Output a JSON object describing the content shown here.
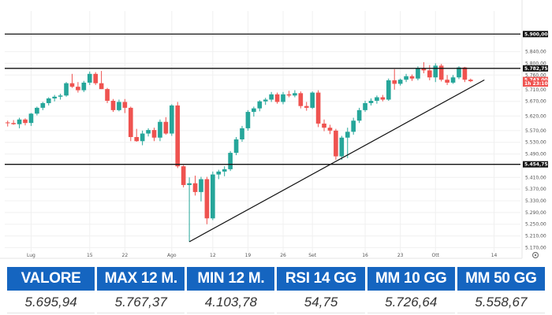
{
  "chart_data": {
    "type": "candlestick",
    "ylim": [
      5155,
      5925
    ],
    "y_ticks": [
      {
        "value": 5900,
        "label": "5.900,00"
      },
      {
        "value": 5840,
        "label": "5.840,00"
      },
      {
        "value": 5800,
        "label": "5.800,00"
      },
      {
        "value": 5760,
        "label": "5.760,00"
      },
      {
        "value": 5710,
        "label": "5.710,00"
      },
      {
        "value": 5670,
        "label": "5.670,00"
      },
      {
        "value": 5620,
        "label": "5.620,00"
      },
      {
        "value": 5570,
        "label": "5.570,00"
      },
      {
        "value": 5530,
        "label": "5.530,00"
      },
      {
        "value": 5490,
        "label": "5.490,00"
      },
      {
        "value": 5410,
        "label": "5.410,00"
      },
      {
        "value": 5370,
        "label": "5.370,00"
      },
      {
        "value": 5330,
        "label": "5.330,00"
      },
      {
        "value": 5290,
        "label": "5.290,00"
      },
      {
        "value": 5250,
        "label": "5.250,00"
      },
      {
        "value": 5210,
        "label": "5.210,00"
      },
      {
        "value": 5170,
        "label": "5.170,00"
      }
    ],
    "x_ticks": [
      {
        "index": 4,
        "label": "Lug"
      },
      {
        "index": 14,
        "label": "15"
      },
      {
        "index": 20,
        "label": "22"
      },
      {
        "index": 28,
        "label": "Ago"
      },
      {
        "index": 35,
        "label": "12"
      },
      {
        "index": 41,
        "label": "19"
      },
      {
        "index": 47,
        "label": "26"
      },
      {
        "index": 52,
        "label": "Set"
      },
      {
        "index": 61,
        "label": "16"
      },
      {
        "index": 67,
        "label": "23"
      },
      {
        "index": 73,
        "label": "Ott"
      },
      {
        "index": 83,
        "label": "14"
      }
    ],
    "x_count": 88,
    "candles": [
      {
        "o": 5598,
        "h": 5604,
        "l": 5584,
        "c": 5596
      },
      {
        "o": 5596,
        "h": 5606,
        "l": 5590,
        "c": 5592
      },
      {
        "o": 5592,
        "h": 5614,
        "l": 5578,
        "c": 5608
      },
      {
        "o": 5608,
        "h": 5612,
        "l": 5588,
        "c": 5596
      },
      {
        "o": 5596,
        "h": 5630,
        "l": 5586,
        "c": 5628
      },
      {
        "o": 5628,
        "h": 5652,
        "l": 5622,
        "c": 5648
      },
      {
        "o": 5648,
        "h": 5668,
        "l": 5640,
        "c": 5664
      },
      {
        "o": 5664,
        "h": 5684,
        "l": 5656,
        "c": 5680
      },
      {
        "o": 5680,
        "h": 5692,
        "l": 5670,
        "c": 5686
      },
      {
        "o": 5686,
        "h": 5696,
        "l": 5676,
        "c": 5690
      },
      {
        "o": 5690,
        "h": 5736,
        "l": 5686,
        "c": 5732
      },
      {
        "o": 5732,
        "h": 5764,
        "l": 5716,
        "c": 5720
      },
      {
        "o": 5720,
        "h": 5736,
        "l": 5700,
        "c": 5708
      },
      {
        "o": 5708,
        "h": 5740,
        "l": 5702,
        "c": 5734
      },
      {
        "o": 5734,
        "h": 5772,
        "l": 5726,
        "c": 5764
      },
      {
        "o": 5764,
        "h": 5770,
        "l": 5726,
        "c": 5732
      },
      {
        "o": 5732,
        "h": 5774,
        "l": 5712,
        "c": 5712
      },
      {
        "o": 5712,
        "h": 5716,
        "l": 5664,
        "c": 5672
      },
      {
        "o": 5672,
        "h": 5678,
        "l": 5634,
        "c": 5640
      },
      {
        "o": 5640,
        "h": 5676,
        "l": 5636,
        "c": 5668
      },
      {
        "o": 5668,
        "h": 5678,
        "l": 5630,
        "c": 5648
      },
      {
        "o": 5648,
        "h": 5652,
        "l": 5534,
        "c": 5548
      },
      {
        "o": 5548,
        "h": 5576,
        "l": 5532,
        "c": 5534
      },
      {
        "o": 5534,
        "h": 5570,
        "l": 5520,
        "c": 5560
      },
      {
        "o": 5560,
        "h": 5578,
        "l": 5550,
        "c": 5572
      },
      {
        "o": 5572,
        "h": 5580,
        "l": 5534,
        "c": 5546
      },
      {
        "o": 5546,
        "h": 5608,
        "l": 5534,
        "c": 5600
      },
      {
        "o": 5600,
        "h": 5616,
        "l": 5556,
        "c": 5560
      },
      {
        "o": 5560,
        "h": 5660,
        "l": 5552,
        "c": 5656
      },
      {
        "o": 5656,
        "h": 5668,
        "l": 5442,
        "c": 5448
      },
      {
        "o": 5448,
        "h": 5452,
        "l": 5376,
        "c": 5384
      },
      {
        "o": 5384,
        "h": 5410,
        "l": 5190,
        "c": 5390
      },
      {
        "o": 5390,
        "h": 5416,
        "l": 5348,
        "c": 5360
      },
      {
        "o": 5360,
        "h": 5412,
        "l": 5328,
        "c": 5404
      },
      {
        "o": 5404,
        "h": 5412,
        "l": 5250,
        "c": 5270
      },
      {
        "o": 5270,
        "h": 5430,
        "l": 5264,
        "c": 5420
      },
      {
        "o": 5420,
        "h": 5436,
        "l": 5404,
        "c": 5430
      },
      {
        "o": 5430,
        "h": 5448,
        "l": 5414,
        "c": 5438
      },
      {
        "o": 5438,
        "h": 5500,
        "l": 5432,
        "c": 5494
      },
      {
        "o": 5494,
        "h": 5548,
        "l": 5486,
        "c": 5540
      },
      {
        "o": 5540,
        "h": 5586,
        "l": 5532,
        "c": 5578
      },
      {
        "o": 5578,
        "h": 5640,
        "l": 5570,
        "c": 5634
      },
      {
        "o": 5634,
        "h": 5652,
        "l": 5618,
        "c": 5646
      },
      {
        "o": 5646,
        "h": 5674,
        "l": 5636,
        "c": 5670
      },
      {
        "o": 5670,
        "h": 5682,
        "l": 5658,
        "c": 5676
      },
      {
        "o": 5676,
        "h": 5702,
        "l": 5668,
        "c": 5694
      },
      {
        "o": 5694,
        "h": 5700,
        "l": 5662,
        "c": 5668
      },
      {
        "o": 5668,
        "h": 5702,
        "l": 5660,
        "c": 5694
      },
      {
        "o": 5694,
        "h": 5706,
        "l": 5684,
        "c": 5690
      },
      {
        "o": 5690,
        "h": 5708,
        "l": 5684,
        "c": 5698
      },
      {
        "o": 5698,
        "h": 5704,
        "l": 5646,
        "c": 5654
      },
      {
        "o": 5654,
        "h": 5668,
        "l": 5638,
        "c": 5648
      },
      {
        "o": 5648,
        "h": 5704,
        "l": 5644,
        "c": 5700
      },
      {
        "o": 5700,
        "h": 5708,
        "l": 5582,
        "c": 5594
      },
      {
        "o": 5594,
        "h": 5608,
        "l": 5568,
        "c": 5580
      },
      {
        "o": 5580,
        "h": 5590,
        "l": 5558,
        "c": 5570
      },
      {
        "o": 5570,
        "h": 5576,
        "l": 5470,
        "c": 5482
      },
      {
        "o": 5482,
        "h": 5552,
        "l": 5470,
        "c": 5546
      },
      {
        "o": 5546,
        "h": 5580,
        "l": 5476,
        "c": 5566
      },
      {
        "o": 5566,
        "h": 5614,
        "l": 5556,
        "c": 5604
      },
      {
        "o": 5604,
        "h": 5648,
        "l": 5596,
        "c": 5640
      },
      {
        "o": 5640,
        "h": 5672,
        "l": 5634,
        "c": 5664
      },
      {
        "o": 5664,
        "h": 5680,
        "l": 5656,
        "c": 5672
      },
      {
        "o": 5672,
        "h": 5690,
        "l": 5662,
        "c": 5684
      },
      {
        "o": 5684,
        "h": 5692,
        "l": 5670,
        "c": 5676
      },
      {
        "o": 5676,
        "h": 5748,
        "l": 5672,
        "c": 5742
      },
      {
        "o": 5742,
        "h": 5780,
        "l": 5710,
        "c": 5730
      },
      {
        "o": 5730,
        "h": 5748,
        "l": 5724,
        "c": 5744
      },
      {
        "o": 5744,
        "h": 5764,
        "l": 5736,
        "c": 5756
      },
      {
        "o": 5756,
        "h": 5762,
        "l": 5740,
        "c": 5748
      },
      {
        "o": 5748,
        "h": 5790,
        "l": 5742,
        "c": 5784
      },
      {
        "o": 5784,
        "h": 5804,
        "l": 5766,
        "c": 5776
      },
      {
        "o": 5776,
        "h": 5794,
        "l": 5742,
        "c": 5752
      },
      {
        "o": 5752,
        "h": 5800,
        "l": 5736,
        "c": 5792
      },
      {
        "o": 5792,
        "h": 5798,
        "l": 5738,
        "c": 5744
      },
      {
        "o": 5744,
        "h": 5760,
        "l": 5726,
        "c": 5734
      },
      {
        "o": 5734,
        "h": 5760,
        "l": 5730,
        "c": 5752
      },
      {
        "o": 5752,
        "h": 5790,
        "l": 5746,
        "c": 5786
      },
      {
        "o": 5786,
        "h": 5788,
        "l": 5736,
        "c": 5744
      },
      {
        "o": 5744,
        "h": 5748,
        "l": 5736,
        "c": 5739
      }
    ],
    "horizontal_lines": [
      {
        "value": 5900,
        "label": "5.900,00"
      },
      {
        "value": 5782.75,
        "label": "5.782,75"
      },
      {
        "value": 5454.75,
        "label": "5.454,75"
      }
    ],
    "price_tags": [
      {
        "value": 5743,
        "label": "5.743,00",
        "color": "#ef5350"
      },
      {
        "value": 5731,
        "label": "1h 23:10",
        "color": "#ef5350"
      }
    ],
    "trendline": {
      "from": {
        "i": 31,
        "v": 5190
      },
      "to": {
        "i": 80,
        "v": 5746
      }
    },
    "colors": {
      "up": "#26a69a",
      "down": "#ef5350",
      "line": "#111111",
      "grid": "#f0f0f0"
    }
  },
  "stats_table": {
    "headers": [
      "VALORE",
      "MAX 12 M.",
      "MIN 12 M.",
      "RSI 14 GG",
      "MM 10 GG",
      "MM 50 GG"
    ],
    "values": [
      "5.695,94",
      "5.767,37",
      "4.103,78",
      "54,75",
      "5.726,64",
      "5.558,67"
    ],
    "header_color": "#1565c0"
  },
  "icons": {
    "settings": "gear-icon"
  }
}
